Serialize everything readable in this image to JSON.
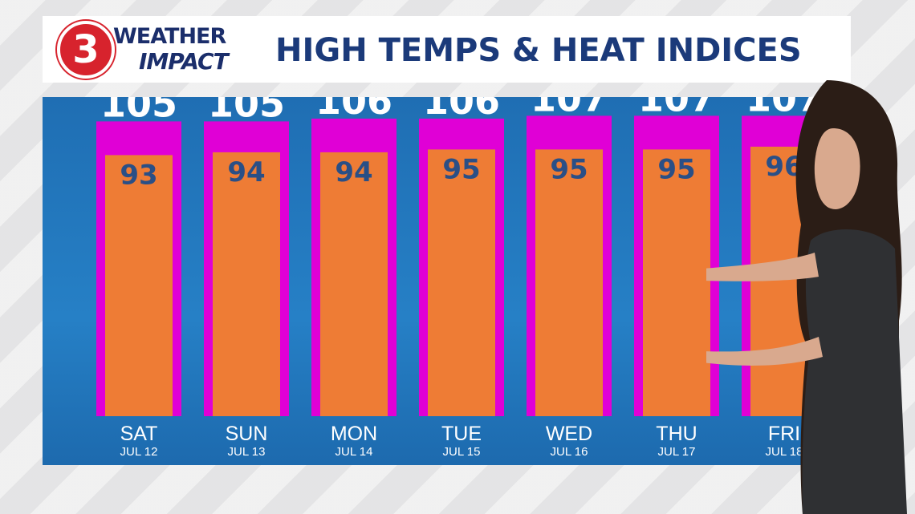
{
  "header": {
    "logo_number": "3",
    "logo_line1": "WEATHER",
    "logo_line2": "IMPACT",
    "title": "HIGH TEMPS & HEAT INDICES"
  },
  "colors": {
    "heat_index_bar": "#e000d6",
    "high_temp_bar": "#ee7c35",
    "panel_blue": "#2277bd",
    "header_text": "#1b3a7a",
    "high_temp_label": "#2a4f86"
  },
  "chart_data": {
    "type": "bar",
    "title": "HIGH TEMPS & HEAT INDICES",
    "categories": [
      "SAT",
      "SUN",
      "MON",
      "TUE",
      "WED",
      "THU",
      "FRI"
    ],
    "dates": [
      "JUL 12",
      "JUL 13",
      "JUL 14",
      "JUL 15",
      "JUL 16",
      "JUL 17",
      "JUL 18"
    ],
    "series": [
      {
        "values": [
          105,
          105,
          106,
          106,
          107,
          107,
          107
        ]
      },
      {
        "values": [
          93,
          94,
          94,
          95,
          95,
          95,
          96
        ]
      }
    ],
    "ylim": [
      0,
      108
    ],
    "grid": false
  }
}
